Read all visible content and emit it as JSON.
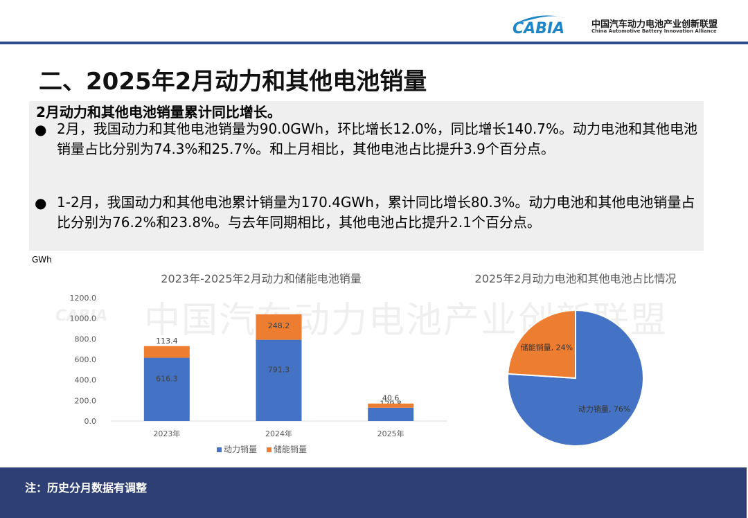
{
  "header": {
    "logo_mark": "CABIA",
    "org_name_cn": "中国汽车动力电池产业创新联盟",
    "org_name_en": "China Automotive Battery Innovation Alliance",
    "accent_color": "#2f4b8c"
  },
  "page_title": "二、2025年2月动力和其他电池销量",
  "summary": {
    "lead": "2月动力和其他电池销量累计同比增长。",
    "bullets": [
      "2月，我国动力和其他电池销量为90.0GWh，环比增长12.0%，同比增长140.7%。动力电池和其他电池销量占比分别为74.3%和25.7%。和上月相比，其他电池占比提升3.9个百分点。",
      "1-2月，我国动力和其他电池累计销量为170.4GWh，累计同比增长80.3%。动力电池和其他电池销量占比分别为76.2%和23.8%。与去年同期相比，其他电池占比提升2.1个百分点。"
    ],
    "bullet_symbol": "●"
  },
  "unit_label": "GWh",
  "watermark": "中国汽车动力电池产业创新联盟",
  "chart_data": [
    {
      "type": "bar",
      "stacked": true,
      "title": "2023年-2025年2月动力和储能电池销量",
      "categories": [
        "2023年",
        "2024年",
        "2025年"
      ],
      "series": [
        {
          "name": "动力销量",
          "values": [
            616.3,
            791.3,
            129.8
          ],
          "color": "#4472c4"
        },
        {
          "name": "储能销量",
          "values": [
            113.4,
            248.2,
            40.6
          ],
          "color": "#ed7d31"
        }
      ],
      "ylim": [
        0,
        1200
      ],
      "yticks": [
        "0.0",
        "200.0",
        "400.0",
        "600.0",
        "800.0",
        "1000.0",
        "1200.0"
      ],
      "legend": "bottom",
      "grid": false
    },
    {
      "type": "pie",
      "title": "2025年2月动力电池和其他电池占比情况",
      "slices": [
        {
          "label": "动力销量",
          "value": 76,
          "display": "动力销量, 76%",
          "color": "#4472c4"
        },
        {
          "label": "储能销量",
          "value": 24,
          "display": "储能销量, 24%",
          "color": "#ed7d31"
        }
      ]
    }
  ],
  "note": "注：历史分月数据有调整"
}
